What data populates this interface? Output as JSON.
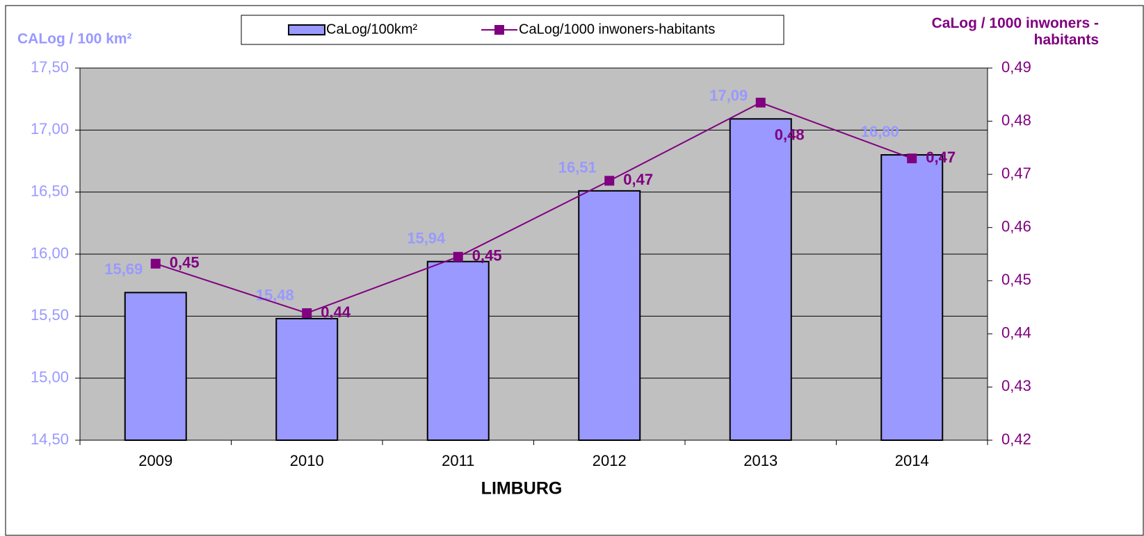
{
  "chart_data": {
    "type": "bar_line",
    "xlabel": "LIMBURG",
    "ylabel": "CALog / 100 km²",
    "y2label": "CaLog / 1000 inwoners - habitants",
    "categories": [
      "2009",
      "2010",
      "2011",
      "2012",
      "2013",
      "2014"
    ],
    "series": [
      {
        "name": "CaLog/100km²",
        "type": "bar",
        "color": "#9999ff",
        "axis": "y",
        "values": [
          15.69,
          15.48,
          15.94,
          16.51,
          17.09,
          16.8
        ],
        "value_labels": [
          "15,69",
          "15,48",
          "15,94",
          "16,51",
          "17,09",
          "16,80"
        ]
      },
      {
        "name": "CaLog/1000 inwoners-habitants",
        "type": "line",
        "color": "#800080",
        "axis": "y2",
        "values": [
          0.4532,
          0.4439,
          0.4545,
          0.4688,
          0.4835,
          0.473
        ],
        "value_labels": [
          "0,45",
          "0,44",
          "0,45",
          "0,47",
          "0,48",
          "0,47"
        ]
      }
    ],
    "ylim": [
      14.5,
      17.5
    ],
    "yticks": [
      {
        "value": 14.5,
        "label": "14,50"
      },
      {
        "value": 15,
        "label": "15,00"
      },
      {
        "value": 15.5,
        "label": "15,50"
      },
      {
        "value": 16,
        "label": "16,00"
      },
      {
        "value": 16.5,
        "label": "16,50"
      },
      {
        "value": 17,
        "label": "17,00"
      },
      {
        "value": 17.5,
        "label": "17,50"
      }
    ],
    "y2lim": [
      0.42,
      0.49
    ],
    "y2ticks": [
      {
        "value": 0.42,
        "label": "0,42"
      },
      {
        "value": 0.43,
        "label": "0,43"
      },
      {
        "value": 0.44,
        "label": "0,44"
      },
      {
        "value": 0.45,
        "label": "0,45"
      },
      {
        "value": 0.46,
        "label": "0,46"
      },
      {
        "value": 0.47,
        "label": "0,47"
      },
      {
        "value": 0.48,
        "label": "0,48"
      },
      {
        "value": 0.49,
        "label": "0,49"
      }
    ],
    "grid": true,
    "legend": "top"
  }
}
